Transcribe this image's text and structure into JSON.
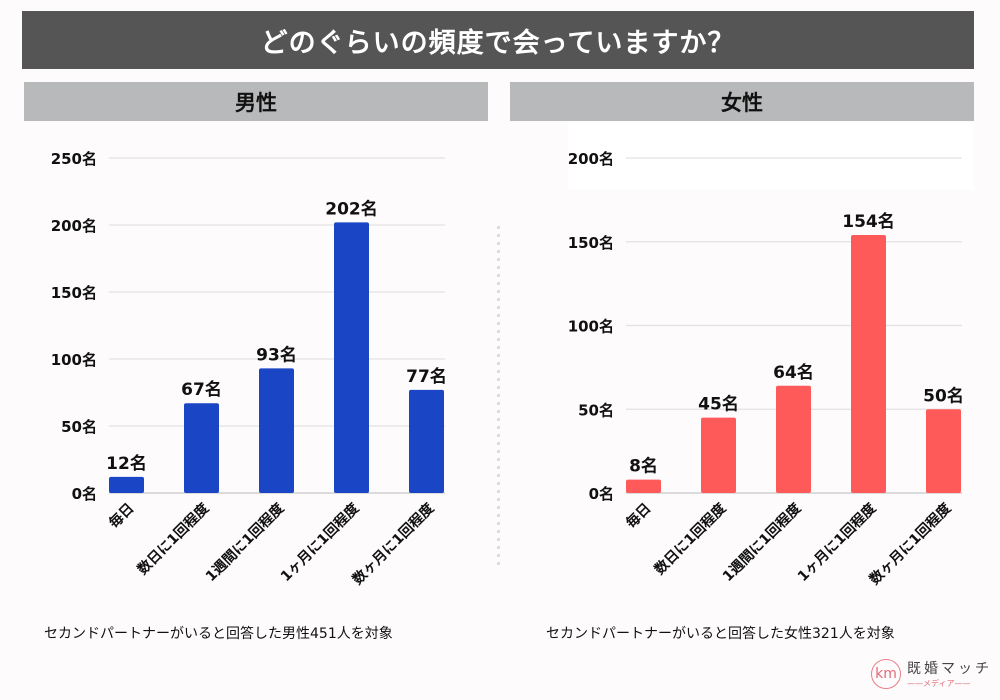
{
  "title": "どのぐらいの頻度で会っていますか？",
  "panels": {
    "male": {
      "header": "男性",
      "caption": "セカンドパートナーがいると回答した男性451人を対象"
    },
    "female": {
      "header": "女性",
      "caption": "セカンドパートナーがいると回答した女性321人を対象"
    }
  },
  "logo": {
    "mark": "km",
    "name": "既婚マッチ",
    "sub": "——メディア——"
  },
  "chart_data": [
    {
      "type": "bar",
      "title": "男性",
      "categories": [
        "毎日",
        "数日に1回程度",
        "1週間に1回程度",
        "1ヶ月に1回程度",
        "数ヶ月に1回程度"
      ],
      "values": [
        12,
        67,
        93,
        202,
        77
      ],
      "value_labels": [
        "12名",
        "67名",
        "93名",
        "202名",
        "77名"
      ],
      "unit": "名",
      "ylim": [
        0,
        250
      ],
      "yticks": [
        0,
        50,
        100,
        150,
        200,
        250
      ],
      "ytick_labels": [
        "0名",
        "50名",
        "100名",
        "150名",
        "200名",
        "250名"
      ],
      "xlabel": "",
      "ylabel": "",
      "grid": true,
      "color": "#1a45c4"
    },
    {
      "type": "bar",
      "title": "女性",
      "categories": [
        "毎日",
        "数日に1回程度",
        "1週間に1回程度",
        "1ヶ月に1回程度",
        "数ヶ月に1回程度"
      ],
      "values": [
        8,
        45,
        64,
        154,
        50
      ],
      "value_labels": [
        "8名",
        "45名",
        "64名",
        "154名",
        "50名"
      ],
      "unit": "名",
      "ylim": [
        0,
        200
      ],
      "yticks": [
        0,
        50,
        100,
        150,
        200
      ],
      "ytick_labels": [
        "0名",
        "50名",
        "100名",
        "150名",
        "200名"
      ],
      "xlabel": "",
      "ylabel": "",
      "grid": true,
      "color": "#ff5a5a"
    }
  ]
}
